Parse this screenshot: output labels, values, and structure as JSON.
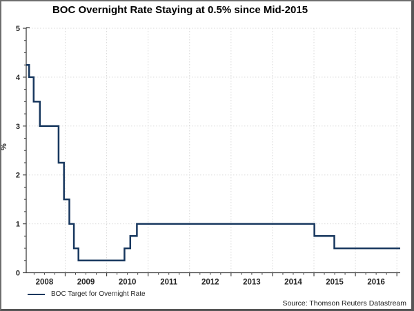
{
  "title": "BOC Overnight Rate Staying at 0.5% since Mid-2015",
  "legend": {
    "label": "BOC Target for Overnight Rate"
  },
  "source": "Source: Thomson Reuters Datastream",
  "colors": {
    "series_line": "#17375e",
    "axis": "#404040",
    "grid": "#d8d8d8",
    "tick_text": "#262626",
    "frame_border": "#565656"
  },
  "chart_data": {
    "type": "line",
    "subtype": "step-after",
    "title": "BOC Overnight Rate Staying at 0.5% since Mid-2015",
    "xlabel": "",
    "ylabel": "%",
    "ylim": [
      0,
      5
    ],
    "y_tick_labels": [
      "0",
      "1",
      "2",
      "3",
      "4",
      "5"
    ],
    "y_minor_step": 0.25,
    "x_range_years": [
      2008.06,
      2017.08
    ],
    "x_tick_labels": [
      "2008",
      "2009",
      "2010",
      "2011",
      "2012",
      "2013",
      "2014",
      "2015",
      "2016"
    ],
    "x_minor_step_quarters": 0.25,
    "grid": "dotted",
    "legend_position": "bottom-left",
    "series": [
      {
        "name": "BOC Target for Overnight Rate",
        "color": "#17375e",
        "step_points": [
          [
            2008.06,
            4.25
          ],
          [
            2008.13,
            4.0
          ],
          [
            2008.24,
            3.5
          ],
          [
            2008.39,
            3.0
          ],
          [
            2008.84,
            2.25
          ],
          [
            2008.97,
            1.5
          ],
          [
            2009.1,
            1.0
          ],
          [
            2009.21,
            0.5
          ],
          [
            2009.32,
            0.25
          ],
          [
            2010.43,
            0.5
          ],
          [
            2010.57,
            0.75
          ],
          [
            2010.73,
            1.0
          ],
          [
            2015.01,
            0.75
          ],
          [
            2015.49,
            0.5
          ],
          [
            2017.08,
            0.5
          ]
        ]
      }
    ]
  }
}
